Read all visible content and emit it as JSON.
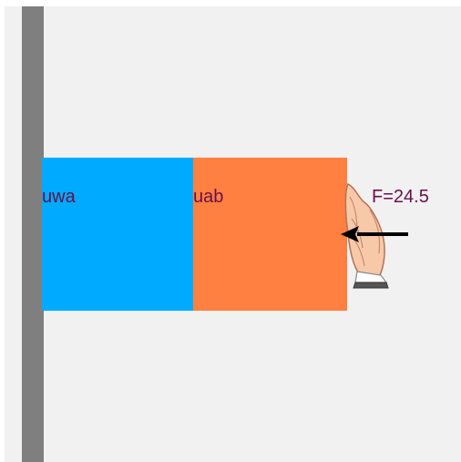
{
  "scene": {
    "colors": {
      "panel": "#f1f1f1",
      "wall": "#7f7f7f",
      "label": "#6b0f4a",
      "arrow": "#000000"
    },
    "blocks": [
      {
        "label": "uwa",
        "color": "#00aaff"
      },
      {
        "label": "uab",
        "color": "#ff8040"
      }
    ],
    "force": {
      "label": "F=24.5",
      "direction": "left",
      "icon": "pushing-hand-icon"
    }
  }
}
